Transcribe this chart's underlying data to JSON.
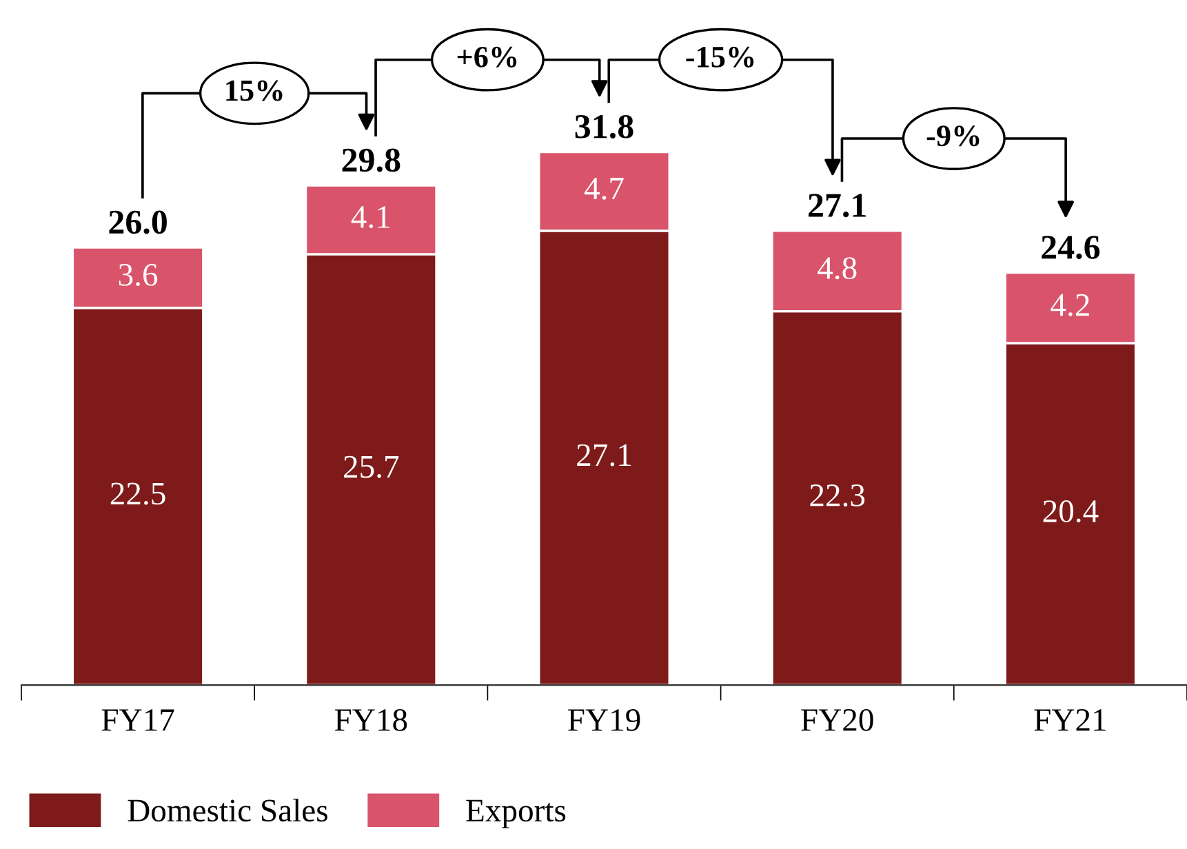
{
  "chart_data": {
    "type": "bar",
    "stacked": true,
    "categories": [
      "FY17",
      "FY18",
      "FY19",
      "FY20",
      "FY21"
    ],
    "series": [
      {
        "name": "Domestic Sales",
        "color": "#7f1a1a",
        "values": [
          22.5,
          25.7,
          27.1,
          22.3,
          20.4
        ]
      },
      {
        "name": "Exports",
        "color": "#d9546a",
        "values": [
          3.6,
          4.1,
          4.7,
          4.8,
          4.2
        ]
      }
    ],
    "data_labels": true,
    "totals": [
      "26.0",
      "29.8",
      "31.8",
      "27.1",
      "24.6"
    ],
    "annotations": [
      "15%",
      "+6%",
      "-15%",
      "-9%"
    ],
    "legend": "bottom",
    "grid": false
  }
}
